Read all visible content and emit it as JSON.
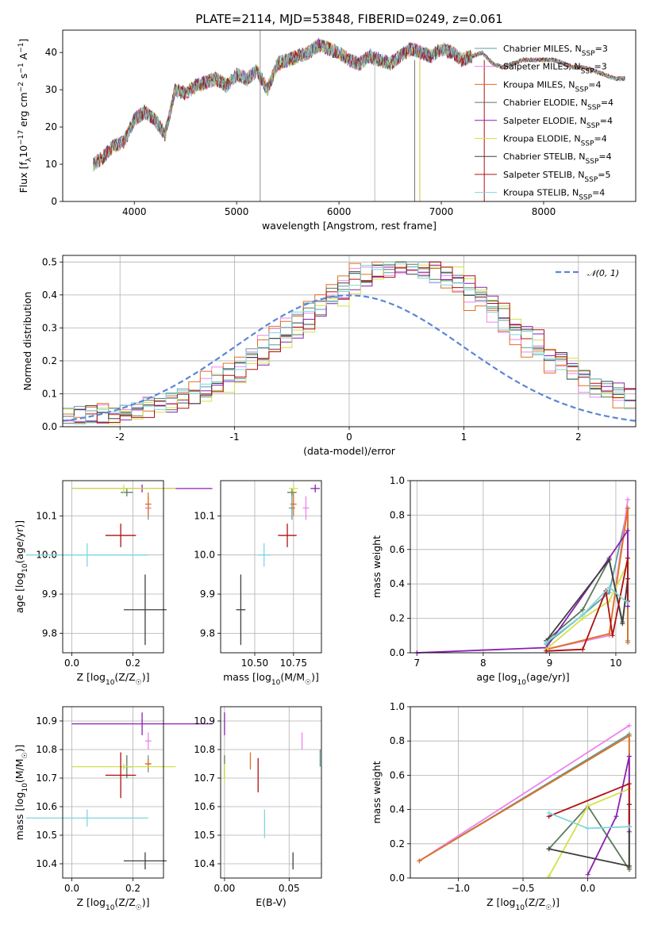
{
  "title": "PLATE=2114, MJD=53848, FIBERID=0249, z=0.061",
  "colors": [
    "#5f9ea0",
    "#ee82ee",
    "#e07020",
    "#5a7a5a",
    "#8b20b0",
    "#d4e04a",
    "#404040",
    "#b01010",
    "#7fd6dd"
  ],
  "chart_data": [
    {
      "id": "spectrum",
      "type": "line",
      "xlabel": "wavelength [Angstrom, rest frame]",
      "ylabel": "Flux [f_λ 10^-17 erg cm^-2 s^-1 A^-1]",
      "xlim": [
        3300,
        8900
      ],
      "ylim": [
        0,
        46
      ],
      "xticks": [
        4000,
        5000,
        6000,
        7000,
        8000
      ],
      "yticks": [
        0,
        10,
        20,
        30,
        40
      ],
      "x": [
        3600,
        3700,
        3800,
        3900,
        4000,
        4100,
        4200,
        4300,
        4400,
        4500,
        4600,
        4700,
        4800,
        4900,
        5000,
        5100,
        5200,
        5300,
        5400,
        5500,
        5600,
        5700,
        5800,
        5900,
        6000,
        6100,
        6200,
        6300,
        6400,
        6500,
        6600,
        6700,
        6800,
        6900,
        7000,
        7100,
        7200,
        7300,
        7400,
        7500,
        7600,
        7700,
        7800,
        7900,
        8000,
        8100,
        8200,
        8300,
        8400,
        8500,
        8600,
        8700,
        8800
      ],
      "y": [
        10,
        12,
        15,
        16,
        22,
        24,
        22,
        18,
        30,
        29,
        31,
        32,
        33,
        31,
        34,
        33,
        35,
        30,
        37,
        38,
        39,
        40,
        42,
        41,
        40,
        38,
        37,
        39,
        38,
        37,
        39,
        41,
        40,
        39,
        41,
        40,
        38,
        39,
        40,
        37,
        36,
        37,
        38,
        38,
        38,
        38,
        37,
        36,
        36,
        35,
        34,
        33,
        33
      ],
      "legend": [
        {
          "name": "Chabrier MILES, N_SSP=3",
          "main": "Chabrier MILES, N",
          "sub": "SSP",
          "tail": "=3"
        },
        {
          "name": "Salpeter MILES, N_SSP=3",
          "main": "Salpeter MILES, N",
          "sub": "SSP",
          "tail": "=3"
        },
        {
          "name": "Kroupa MILES, N_SSP=4",
          "main": "Kroupa MILES, N",
          "sub": "SSP",
          "tail": "=4"
        },
        {
          "name": "Chabrier ELODIE, N_SSP=4",
          "main": "Chabrier ELODIE, N",
          "sub": "SSP",
          "tail": "=4"
        },
        {
          "name": "Salpeter ELODIE, N_SSP=4",
          "main": "Salpeter ELODIE, N",
          "sub": "SSP",
          "tail": "=4"
        },
        {
          "name": "Kroupa ELODIE, N_SSP=4",
          "main": "Kroupa ELODIE, N",
          "sub": "SSP",
          "tail": "=4"
        },
        {
          "name": "Chabrier STELIB, N_SSP=4",
          "main": "Chabrier STELIB, N",
          "sub": "SSP",
          "tail": "=4"
        },
        {
          "name": "Salpeter STELIB, N_SSP=5",
          "main": "Salpeter STELIB, N",
          "sub": "SSP",
          "tail": "=5"
        },
        {
          "name": "Kroupa STELIB, N_SSP=4",
          "main": "Kroupa STELIB, N",
          "sub": "SSP",
          "tail": "=4"
        }
      ]
    },
    {
      "id": "residuals",
      "type": "line",
      "xlabel": "(data-model)/error",
      "ylabel": "Normed distribution",
      "xlim": [
        -2.5,
        2.5
      ],
      "ylim": [
        0,
        0.52
      ],
      "xticks": [
        -2,
        -1,
        0,
        1,
        2
      ],
      "yticks": [
        0.0,
        0.1,
        0.2,
        0.3,
        0.4,
        0.5
      ],
      "reference_curve": "N(0,1)",
      "legend_label": "𝒩(0, 1)",
      "grid": true
    },
    {
      "id": "age_vs_Z",
      "type": "scatter",
      "xlabel": "Z [log10(Z/Z☉)]",
      "ylabel": "age [log10(age/yr)]",
      "xlim": [
        -0.03,
        0.3
      ],
      "ylim": [
        9.75,
        10.19
      ],
      "xticks": [
        0.0,
        0.2
      ],
      "yticks": [
        9.8,
        9.9,
        10.0,
        10.1
      ],
      "points": [
        {
          "x": 0.25,
          "y": 10.12,
          "xerr": 0.01,
          "yerr": 0.03,
          "series": 0
        },
        {
          "x": 0.25,
          "y": 10.12,
          "xerr": 0.01,
          "yerr": 0.02,
          "series": 1
        },
        {
          "x": 0.25,
          "y": 10.13,
          "xerr": 0.01,
          "yerr": 0.03,
          "series": 2
        },
        {
          "x": 0.18,
          "y": 10.16,
          "xerr": 0.02,
          "yerr": 0.01,
          "series": 3
        },
        {
          "x": 0.23,
          "y": 10.17,
          "xerr": 0.23,
          "yerr": 0.01,
          "series": 4
        },
        {
          "x": 0.17,
          "y": 10.17,
          "xerr": 0.17,
          "yerr": 0.01,
          "series": 5
        },
        {
          "x": 0.24,
          "y": 9.86,
          "xerr": 0.07,
          "yerr": 0.09,
          "series": 6
        },
        {
          "x": 0.16,
          "y": 10.05,
          "xerr": 0.05,
          "yerr": 0.03,
          "series": 7
        },
        {
          "x": 0.05,
          "y": 10.0,
          "xerr": 0.2,
          "yerr": 0.03,
          "series": 8
        }
      ]
    },
    {
      "id": "age_vs_mass",
      "type": "scatter",
      "xlabel": "mass [log10(M/M☉)]",
      "ylabel": "",
      "xlim": [
        10.28,
        10.93
      ],
      "ylim": [
        9.75,
        10.19
      ],
      "xticks": [
        10.5,
        10.75
      ],
      "yticks": [
        9.8,
        9.9,
        10.0,
        10.1
      ],
      "points": [
        {
          "x": 10.74,
          "y": 10.12,
          "xerr": 0.02,
          "yerr": 0.03,
          "series": 0
        },
        {
          "x": 10.83,
          "y": 10.12,
          "xerr": 0.02,
          "yerr": 0.03,
          "series": 1
        },
        {
          "x": 10.75,
          "y": 10.13,
          "xerr": 0.02,
          "yerr": 0.03,
          "series": 2
        },
        {
          "x": 10.74,
          "y": 10.16,
          "xerr": 0.03,
          "yerr": 0.01,
          "series": 3
        },
        {
          "x": 10.89,
          "y": 10.17,
          "xerr": 0.03,
          "yerr": 0.01,
          "series": 4
        },
        {
          "x": 10.75,
          "y": 10.17,
          "xerr": 0.03,
          "yerr": 0.01,
          "series": 5
        },
        {
          "x": 10.41,
          "y": 9.86,
          "xerr": 0.03,
          "yerr": 0.09,
          "series": 6
        },
        {
          "x": 10.71,
          "y": 10.05,
          "xerr": 0.06,
          "yerr": 0.03,
          "series": 7
        },
        {
          "x": 10.56,
          "y": 10.0,
          "xerr": 0.04,
          "yerr": 0.03,
          "series": 8
        }
      ]
    },
    {
      "id": "weight_vs_age",
      "type": "line",
      "xlabel": "age [log10(age/yr)]",
      "ylabel": "mass weight",
      "xlim": [
        6.9,
        10.3
      ],
      "ylim": [
        0,
        1.0
      ],
      "xticks": [
        7,
        8,
        9,
        10
      ],
      "yticks": [
        0.0,
        0.2,
        0.4,
        0.6,
        0.8,
        1.0
      ],
      "series": [
        {
          "x": [
            8.95,
            9.5,
            9.9,
            10.18,
            10.18
          ],
          "y": [
            0.05,
            0.22,
            0.35,
            0.84,
            0.07
          ]
        },
        {
          "x": [
            8.95,
            9.9,
            10.18
          ],
          "y": [
            0.02,
            0.1,
            0.89
          ]
        },
        {
          "x": [
            8.95,
            9.9,
            10.18,
            10.18
          ],
          "y": [
            0.02,
            0.11,
            0.84,
            0.06
          ]
        },
        {
          "x": [
            8.95,
            9.5,
            9.9,
            10.1,
            10.18
          ],
          "y": [
            0.07,
            0.25,
            0.54,
            0.18,
            0.43
          ]
        },
        {
          "x": [
            7.0,
            8.95,
            9.9,
            10.18,
            10.18
          ],
          "y": [
            0.0,
            0.03,
            0.55,
            0.71,
            0.27
          ]
        },
        {
          "x": [
            8.95,
            9.5,
            9.9,
            10.18
          ],
          "y": [
            0.02,
            0.2,
            0.3,
            0.52
          ]
        },
        {
          "x": [
            8.95,
            9.9,
            10.1,
            10.18
          ],
          "y": [
            0.07,
            0.54,
            0.17,
            0.43
          ]
        },
        {
          "x": [
            8.95,
            9.5,
            9.85,
            9.95,
            10.18,
            10.18
          ],
          "y": [
            0.01,
            0.02,
            0.36,
            0.1,
            0.55,
            0.3
          ]
        },
        {
          "x": [
            8.95,
            9.5,
            9.9,
            10.18
          ],
          "y": [
            0.06,
            0.22,
            0.38,
            0.29
          ]
        }
      ]
    },
    {
      "id": "mass_vs_Z",
      "type": "scatter",
      "xlabel": "Z [log10(Z/Z☉)]",
      "ylabel": "mass [log10(M/M☉)]",
      "xlim": [
        -0.03,
        0.3
      ],
      "ylim": [
        10.35,
        10.95
      ],
      "xticks": [
        0.0,
        0.2
      ],
      "yticks": [
        10.4,
        10.5,
        10.6,
        10.7,
        10.8,
        10.9
      ],
      "points": [
        {
          "x": 0.25,
          "y": 10.75,
          "xerr": 0.01,
          "yerr": 0.03,
          "series": 0
        },
        {
          "x": 0.25,
          "y": 10.83,
          "xerr": 0.01,
          "yerr": 0.03,
          "series": 1
        },
        {
          "x": 0.25,
          "y": 10.75,
          "xerr": 0.01,
          "yerr": 0.02,
          "series": 2
        },
        {
          "x": 0.18,
          "y": 10.74,
          "xerr": 0.02,
          "yerr": 0.04,
          "series": 3
        },
        {
          "x": 0.23,
          "y": 10.89,
          "xerr": 0.23,
          "yerr": 0.04,
          "series": 4
        },
        {
          "x": 0.17,
          "y": 10.74,
          "xerr": 0.17,
          "yerr": 0.01,
          "series": 5
        },
        {
          "x": 0.24,
          "y": 10.41,
          "xerr": 0.07,
          "yerr": 0.03,
          "series": 6
        },
        {
          "x": 0.16,
          "y": 10.71,
          "xerr": 0.05,
          "yerr": 0.08,
          "series": 7
        },
        {
          "x": 0.05,
          "y": 10.56,
          "xerr": 0.2,
          "yerr": 0.03,
          "series": 8
        }
      ]
    },
    {
      "id": "mass_vs_ebv",
      "type": "scatter",
      "xlabel": "E(B-V)",
      "ylabel": "",
      "xlim": [
        -0.003,
        0.075
      ],
      "ylim": [
        10.35,
        10.95
      ],
      "xticks": [
        0.0,
        0.05
      ],
      "yticks": [
        10.4,
        10.5,
        10.6,
        10.7,
        10.8,
        10.9
      ],
      "points": [
        {
          "x": 0.074,
          "y": 10.77,
          "yerr": 0.03,
          "series": 0
        },
        {
          "x": 0.06,
          "y": 10.83,
          "yerr": 0.03,
          "series": 1
        },
        {
          "x": 0.02,
          "y": 10.76,
          "yerr": 0.03,
          "series": 2
        },
        {
          "x": 0.0,
          "y": 10.74,
          "yerr": 0.04,
          "series": 3
        },
        {
          "x": 0.0,
          "y": 10.89,
          "yerr": 0.04,
          "series": 4
        },
        {
          "x": 0.0,
          "y": 10.72,
          "yerr": 0.03,
          "series": 5
        },
        {
          "x": 0.053,
          "y": 10.41,
          "yerr": 0.03,
          "series": 6
        },
        {
          "x": 0.026,
          "y": 10.71,
          "yerr": 0.06,
          "series": 7
        },
        {
          "x": 0.031,
          "y": 10.54,
          "yerr": 0.05,
          "series": 8
        }
      ]
    },
    {
      "id": "weight_vs_Z",
      "type": "line",
      "xlabel": "Z [log10(Z/Z☉)]",
      "ylabel": "mass weight",
      "xlim": [
        -1.37,
        0.37
      ],
      "ylim": [
        0,
        1.0
      ],
      "xticks": [
        -1.0,
        -0.5,
        0.0
      ],
      "yticks": [
        0.0,
        0.2,
        0.4,
        0.6,
        0.8,
        1.0
      ],
      "series": [
        {
          "x": [
            -1.3,
            0.32,
            0.32
          ],
          "y": [
            0.1,
            0.84,
            0.06
          ]
        },
        {
          "x": [
            -1.3,
            0.32
          ],
          "y": [
            0.1,
            0.89
          ]
        },
        {
          "x": [
            -1.3,
            0.32,
            0.32
          ],
          "y": [
            0.1,
            0.83,
            0.06
          ]
        },
        {
          "x": [
            -0.3,
            0.0,
            0.32,
            0.32
          ],
          "y": [
            0.17,
            0.42,
            0.05,
            0.43
          ]
        },
        {
          "x": [
            0.0,
            0.22,
            0.32,
            0.32
          ],
          "y": [
            0.02,
            0.36,
            0.71,
            0.27
          ]
        },
        {
          "x": [
            -0.3,
            0.0,
            0.32
          ],
          "y": [
            0.01,
            0.42,
            0.52
          ]
        },
        {
          "x": [
            -0.3,
            0.32,
            0.32
          ],
          "y": [
            0.17,
            0.07,
            0.43
          ]
        },
        {
          "x": [
            -0.3,
            0.32,
            0.32
          ],
          "y": [
            0.36,
            0.55,
            0.3
          ]
        },
        {
          "x": [
            -0.3,
            0.0,
            0.32
          ],
          "y": [
            0.38,
            0.29,
            0.3
          ]
        }
      ]
    }
  ],
  "labels": {
    "spec_xlabel": "wavelength [Angstrom, rest frame]",
    "res_xlabel": "(data-model)/error",
    "res_ylabel": "Normed distribution",
    "res_legend": "𝒩(0, 1)",
    "age_ylabel": "age  [log",
    "mass_ylabel": "mass [log",
    "z_xlabel": "Z [log",
    "mass_xlabel": "mass [log",
    "ebv_xlabel": "E(B-V)",
    "age_xlabel": "age  [log",
    "weight_ylabel": "mass weight"
  }
}
